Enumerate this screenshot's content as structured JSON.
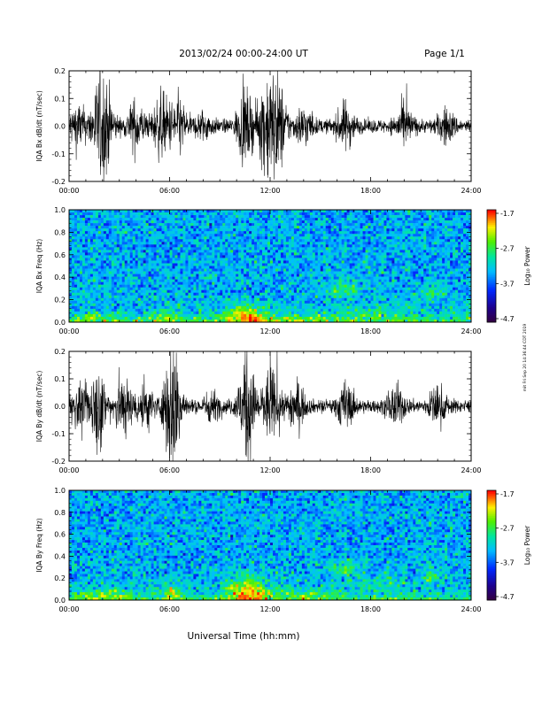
{
  "header": {
    "title": "2013/02/24  00:00-24:00 UT",
    "page": "Page 1/1"
  },
  "xaxis": {
    "label": "Universal Time (hh:mm)",
    "ticks": [
      "00:00",
      "06:00",
      "12:00",
      "18:00",
      "24:00"
    ]
  },
  "side_note": "mit Fri Sep 20 14:36:44 CDT 2019",
  "colorbar": {
    "ticks": [
      "-1.7",
      "-2.7",
      "-3.7",
      "-4.7"
    ],
    "label": "Log₁₀ Power"
  },
  "chart_data": [
    {
      "type": "line",
      "ylabel": "IQA Bx dB/dt (nT/sec)",
      "xlim": [
        0,
        24
      ],
      "ylim": [
        -0.2,
        0.2
      ],
      "yticks": [
        "0.2",
        "0.1",
        "0.0",
        "-0.1",
        "-0.2"
      ],
      "activity": [
        {
          "t": 0.5,
          "amp": 0.035
        },
        {
          "t": 1.8,
          "amp": 0.06
        },
        {
          "t": 2.2,
          "amp": 0.05
        },
        {
          "t": 4.0,
          "amp": 0.04
        },
        {
          "t": 5.5,
          "amp": 0.05
        },
        {
          "t": 6.5,
          "amp": 0.045
        },
        {
          "t": 8.0,
          "amp": 0.02
        },
        {
          "t": 10.5,
          "amp": 0.055
        },
        {
          "t": 11.8,
          "amp": 0.08
        },
        {
          "t": 12.5,
          "amp": 0.07
        },
        {
          "t": 14.0,
          "amp": 0.03
        },
        {
          "t": 16.5,
          "amp": 0.035
        },
        {
          "t": 20.0,
          "amp": 0.03
        },
        {
          "t": 22.5,
          "amp": 0.025
        }
      ]
    },
    {
      "type": "heatmap",
      "ylabel": "IQA Bx Freq (Hz)",
      "xlim": [
        0,
        24
      ],
      "ylim": [
        0,
        1.0
      ],
      "yticks": [
        "1.0",
        "0.8",
        "0.6",
        "0.4",
        "0.2",
        "0.0"
      ],
      "zlim": [
        -4.7,
        -1.7
      ],
      "hotspots": [
        {
          "t": 10.5,
          "f": 0.05,
          "dt": 1.2,
          "df": 0.12,
          "p": 1.9
        },
        {
          "t": 16.3,
          "f": 0.3,
          "dt": 1.0,
          "df": 0.08,
          "p": 1.1
        },
        {
          "t": 21.8,
          "f": 0.28,
          "dt": 0.8,
          "df": 0.07,
          "p": 0.9
        },
        {
          "t": 5.8,
          "f": 0.05,
          "dt": 1.0,
          "df": 0.06,
          "p": 0.9
        },
        {
          "t": 1.5,
          "f": 0.04,
          "dt": 1.6,
          "df": 0.05,
          "p": 0.8
        },
        {
          "t": 13.5,
          "f": 0.03,
          "dt": 3.0,
          "df": 0.05,
          "p": 0.7
        },
        {
          "t": 18.5,
          "f": 0.08,
          "dt": 2.0,
          "df": 0.08,
          "p": 0.6
        }
      ]
    },
    {
      "type": "line",
      "ylabel": "IQA By dB/dt (nT/sec)",
      "xlim": [
        0,
        24
      ],
      "ylim": [
        -0.2,
        0.2
      ],
      "yticks": [
        "0.2",
        "0.1",
        "0.0",
        "-0.1",
        "-0.2"
      ],
      "activity": [
        {
          "t": 0.5,
          "amp": 0.03
        },
        {
          "t": 1.7,
          "amp": 0.07
        },
        {
          "t": 3.2,
          "amp": 0.05
        },
        {
          "t": 4.5,
          "amp": 0.04
        },
        {
          "t": 6.2,
          "amp": 0.12
        },
        {
          "t": 8.5,
          "amp": 0.02
        },
        {
          "t": 10.6,
          "amp": 0.09
        },
        {
          "t": 12.0,
          "amp": 0.06
        },
        {
          "t": 13.5,
          "amp": 0.04
        },
        {
          "t": 16.5,
          "amp": 0.035
        },
        {
          "t": 19.5,
          "amp": 0.03
        },
        {
          "t": 22.0,
          "amp": 0.03
        }
      ]
    },
    {
      "type": "heatmap",
      "ylabel": "IQA By Freq (Hz)",
      "xlim": [
        0,
        24
      ],
      "ylim": [
        0,
        1.0
      ],
      "yticks": [
        "1.0",
        "0.8",
        "0.6",
        "0.4",
        "0.2",
        "0.0"
      ],
      "zlim": [
        -4.7,
        -1.7
      ],
      "hotspots": [
        {
          "t": 10.6,
          "f": 0.08,
          "dt": 1.1,
          "df": 0.14,
          "p": 2.0
        },
        {
          "t": 6.1,
          "f": 0.06,
          "dt": 0.5,
          "df": 0.1,
          "p": 1.6
        },
        {
          "t": 16.4,
          "f": 0.28,
          "dt": 0.9,
          "df": 0.07,
          "p": 1.0
        },
        {
          "t": 21.8,
          "f": 0.22,
          "dt": 0.7,
          "df": 0.08,
          "p": 1.0
        },
        {
          "t": 2.0,
          "f": 0.05,
          "dt": 2.0,
          "df": 0.06,
          "p": 0.9
        },
        {
          "t": 13.5,
          "f": 0.05,
          "dt": 3.0,
          "df": 0.06,
          "p": 0.8
        },
        {
          "t": 18.5,
          "f": 0.15,
          "dt": 1.5,
          "df": 0.06,
          "p": 0.6
        }
      ]
    }
  ]
}
